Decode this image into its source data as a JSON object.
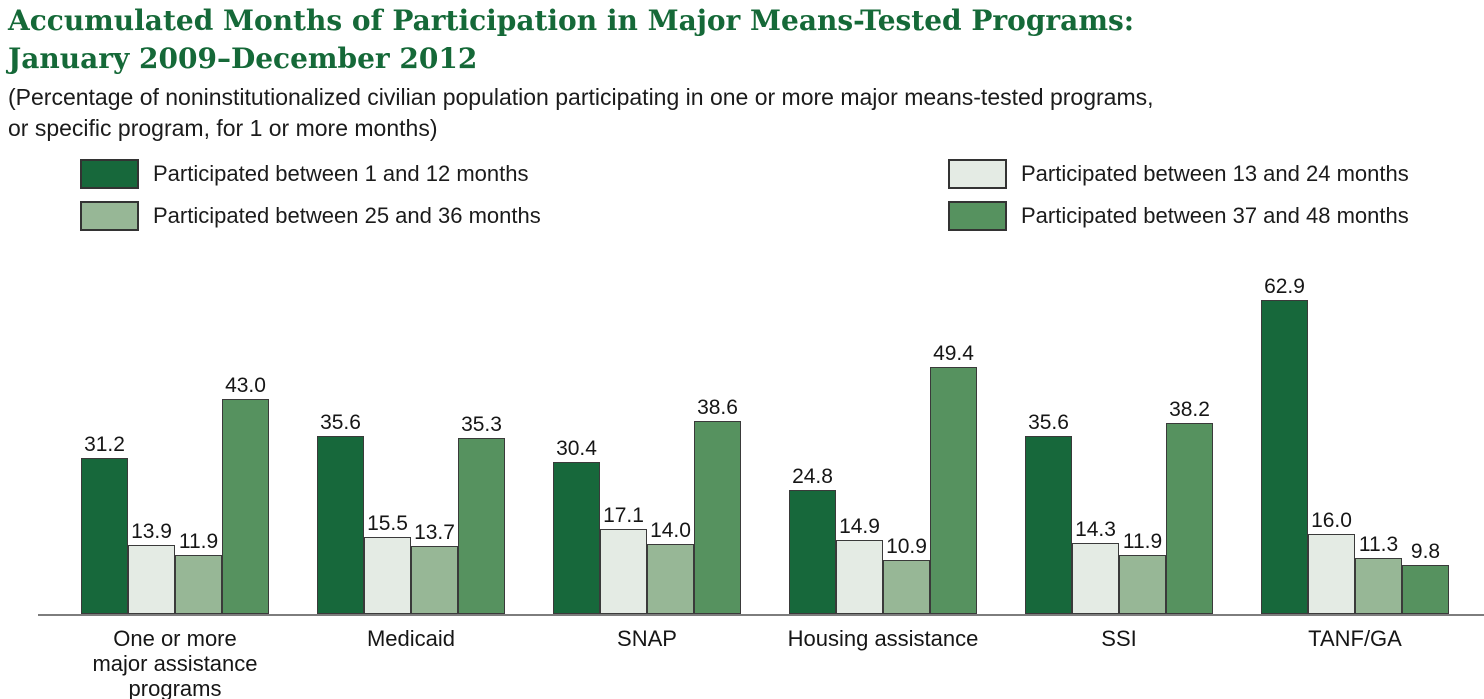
{
  "title": {
    "line1": "Accumulated Months of Participation in Major Means-Tested Programs:",
    "line2": "January 2009–December 2012"
  },
  "subtitle": {
    "line1": "(Percentage of noninstitutionalized civilian population participating in one or more major means-tested programs,",
    "line2": "or specific program, for 1 or more months)"
  },
  "legend": [
    {
      "label": "Participated between 1 and 12 months",
      "color": "#17683B"
    },
    {
      "label": "Participated between 13 and 24 months",
      "color": "#E4EBE4"
    },
    {
      "label": "Participated between 25 and 36 months",
      "color": "#97B796"
    },
    {
      "label": "Participated between 37 and 48 months",
      "color": "#56925F"
    }
  ],
  "chart_data": {
    "type": "bar",
    "title": "Accumulated Months of Participation in Major Means-Tested Programs: January 2009–December 2012",
    "subtitle": "(Percentage of noninstitutionalized civilian population participating in one or more major means-tested programs, or specific program, for 1 or more months)",
    "categories": [
      "One or more major assistance programs",
      "Medicaid",
      "SNAP",
      "Housing assistance",
      "SSI",
      "TANF/GA"
    ],
    "series": [
      {
        "name": "Participated between 1 and 12 months",
        "color": "#17683B",
        "values": [
          31.2,
          35.6,
          30.4,
          24.8,
          35.6,
          62.9
        ]
      },
      {
        "name": "Participated between 13 and 24 months",
        "color": "#E4EBE4",
        "values": [
          13.9,
          15.5,
          17.1,
          14.9,
          14.3,
          16.0
        ]
      },
      {
        "name": "Participated between 25 and 36 months",
        "color": "#97B796",
        "values": [
          11.9,
          13.7,
          14.0,
          10.9,
          11.9,
          11.3
        ]
      },
      {
        "name": "Participated between 37 and 48 months",
        "color": "#56925F",
        "values": [
          43.0,
          35.3,
          38.6,
          49.4,
          38.2,
          9.8
        ]
      }
    ],
    "value_labels": true,
    "value_format": "1-decimal",
    "ylabel": "",
    "xlabel": "",
    "ylim": [
      0,
      66
    ],
    "grid": false,
    "legend_position": "top"
  },
  "colors": {
    "title_green": "#156938",
    "text": "#1b1b1b",
    "axis_line": "#7d7d7d",
    "bar_border": "#3a3a3a"
  }
}
